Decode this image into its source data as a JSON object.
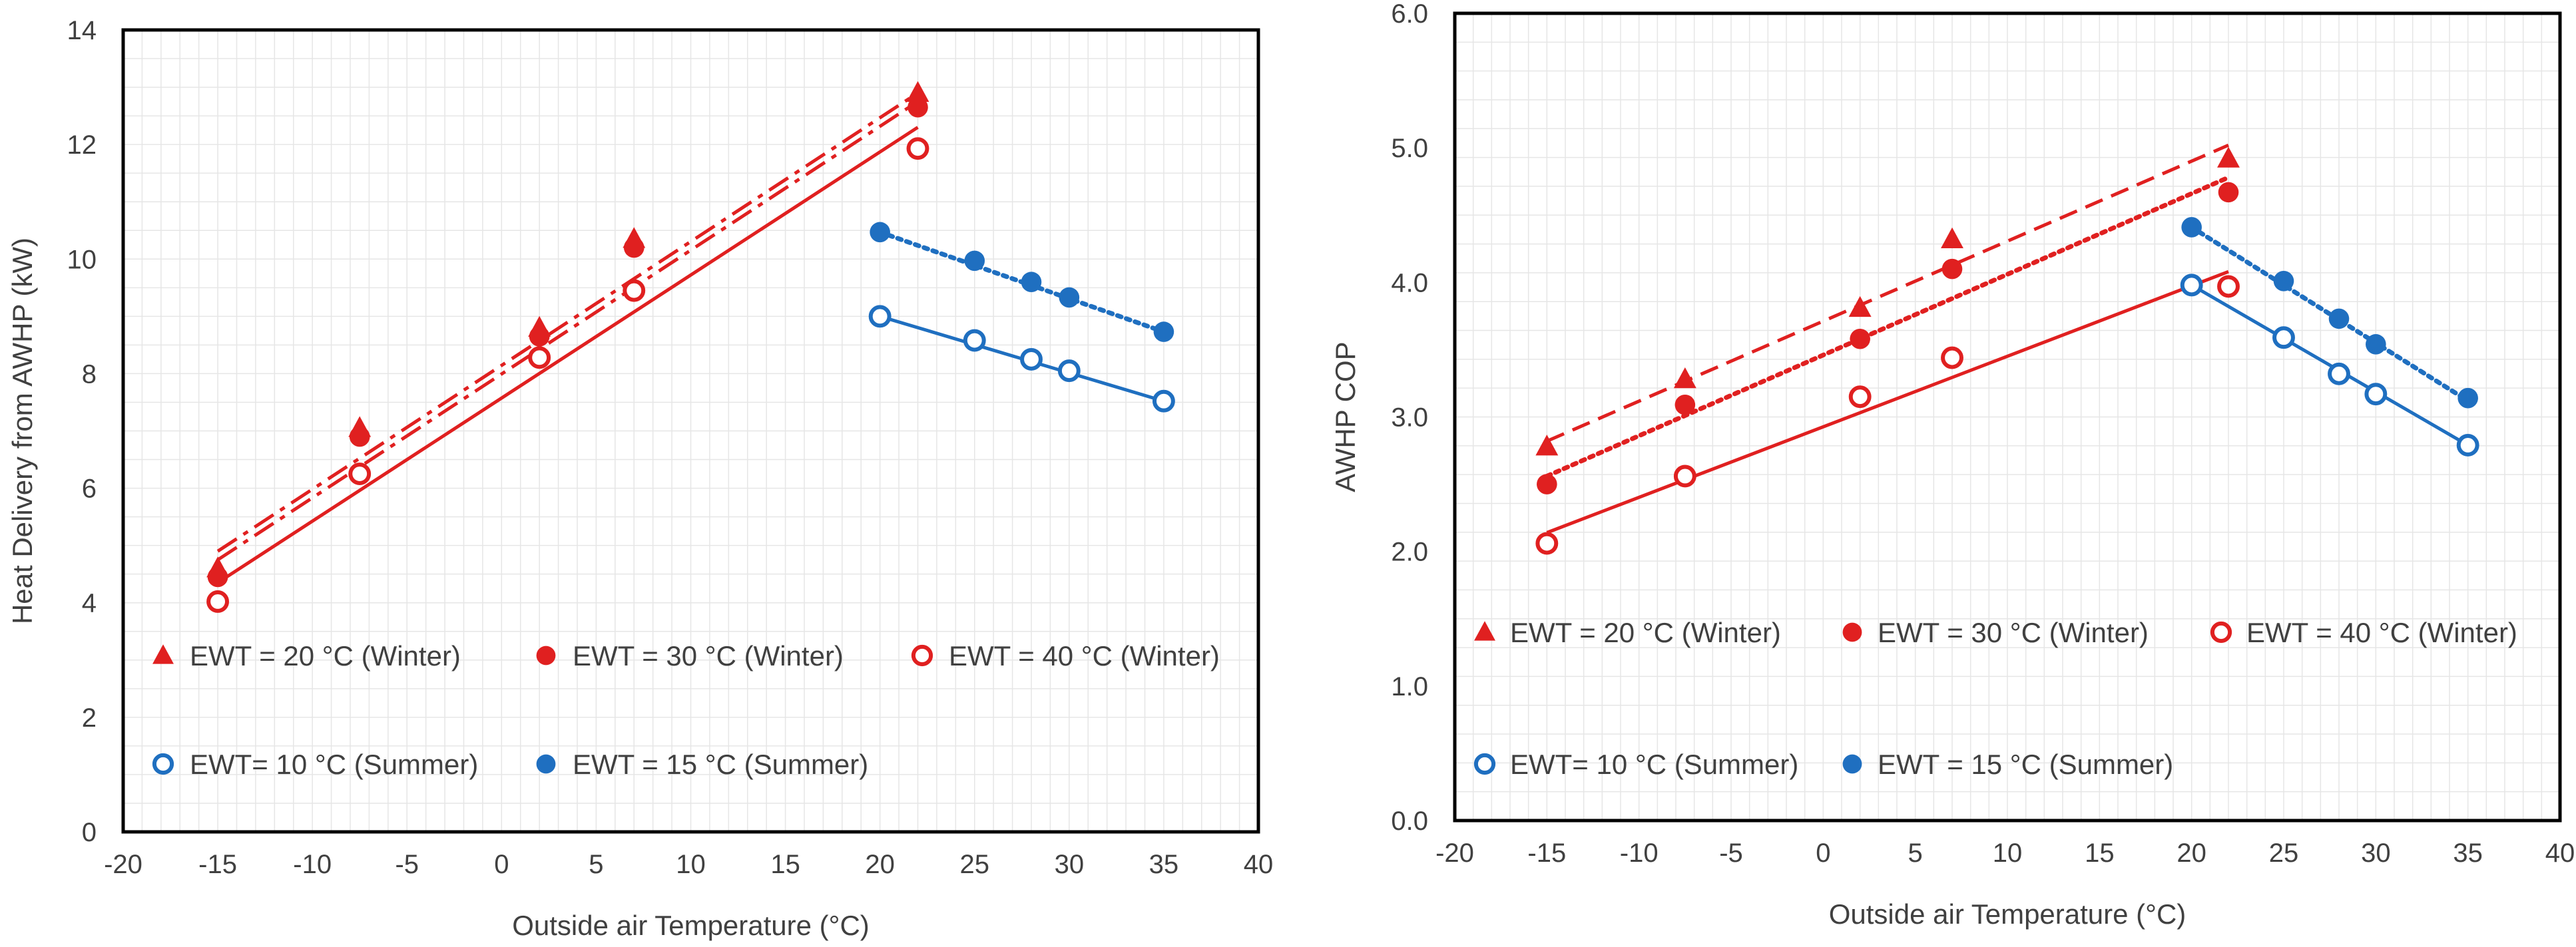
{
  "chart_data": [
    {
      "type": "scatter",
      "xlabel": "Outside air Temperature (°C)",
      "ylabel": "Heat Delivery from AWHP (kW)",
      "xlim": [
        -20,
        40
      ],
      "ylim": [
        0,
        14
      ],
      "xticks": [
        -20,
        -15,
        -10,
        -5,
        0,
        5,
        10,
        15,
        20,
        25,
        30,
        35,
        40
      ],
      "yticks": [
        0,
        2,
        4,
        6,
        8,
        10,
        12,
        14
      ],
      "ytick_decimals": 0,
      "grid": true,
      "series": [
        {
          "name": "EWT = 20 °C (Winter)",
          "marker": "triangle",
          "color": "#e02020",
          "x": [
            -15,
            -7.5,
            2,
            7,
            22
          ],
          "y": [
            4.6,
            7.05,
            8.8,
            10.35,
            12.9
          ]
        },
        {
          "name": "EWT = 30 °C (Winter)",
          "marker": "circle-filled",
          "color": "#e02020",
          "x": [
            -15,
            -7.5,
            2,
            7,
            22
          ],
          "y": [
            4.45,
            6.9,
            8.65,
            10.2,
            12.65
          ]
        },
        {
          "name": "EWT = 40 °C (Winter)",
          "marker": "circle-open",
          "color": "#e02020",
          "x": [
            -15,
            -7.5,
            2,
            7,
            22
          ],
          "y": [
            4.02,
            6.25,
            8.28,
            9.45,
            11.93
          ]
        },
        {
          "name": "EWT= 10 °C (Summer)",
          "marker": "circle-open",
          "color": "#1f6fc0",
          "x": [
            20,
            25,
            28,
            30,
            35
          ],
          "y": [
            9.0,
            8.58,
            8.25,
            8.05,
            7.52
          ]
        },
        {
          "name": "EWT = 15 °C (Summer)",
          "marker": "circle-filled",
          "color": "#1f6fc0",
          "x": [
            20,
            25,
            28,
            30,
            35
          ],
          "y": [
            10.47,
            9.97,
            9.6,
            9.33,
            8.73
          ]
        }
      ],
      "trendlines": [
        {
          "of": "EWT = 20 °C (Winter)",
          "style": "dashdot",
          "color": "#e02020",
          "x": [
            -15,
            22
          ],
          "y": [
            4.9,
            12.9
          ]
        },
        {
          "of": "EWT = 30 °C (Winter)",
          "style": "dashdot",
          "color": "#e02020",
          "x": [
            -15,
            22
          ],
          "y": [
            4.75,
            12.75
          ]
        },
        {
          "of": "EWT = 40 °C (Winter)",
          "style": "solid",
          "color": "#e02020",
          "x": [
            -15,
            22
          ],
          "y": [
            4.35,
            12.3
          ]
        },
        {
          "of": "EWT= 10 °C (Summer)",
          "style": "solid",
          "color": "#1f6fc0",
          "x": [
            20,
            35
          ],
          "y": [
            9.0,
            7.52
          ]
        },
        {
          "of": "EWT = 15 °C (Summer)",
          "style": "dotted",
          "color": "#1f6fc0",
          "x": [
            20,
            35
          ],
          "y": [
            10.47,
            8.73
          ]
        }
      ],
      "legend": [
        [
          "EWT = 20 °C (Winter)",
          "EWT = 30 °C (Winter)",
          "EWT = 40 °C (Winter)"
        ],
        [
          "EWT= 10 °C (Summer)",
          "EWT = 15 °C (Summer)"
        ]
      ]
    },
    {
      "type": "scatter",
      "xlabel": "Outside air Temperature (°C)",
      "ylabel": "AWHP COP",
      "xlim": [
        -20,
        40
      ],
      "ylim": [
        0,
        6
      ],
      "xticks": [
        -20,
        -15,
        -10,
        -5,
        0,
        5,
        10,
        15,
        20,
        25,
        30,
        35,
        40
      ],
      "yticks": [
        0,
        1,
        2,
        3,
        4,
        5,
        6
      ],
      "ytick_decimals": 1,
      "grid": true,
      "series": [
        {
          "name": "EWT = 20 °C (Winter)",
          "marker": "triangle",
          "color": "#e02020",
          "x": [
            -15,
            -7.5,
            2,
            7,
            22
          ],
          "y": [
            2.78,
            3.28,
            3.81,
            4.32,
            4.92
          ]
        },
        {
          "name": "EWT = 30 °C (Winter)",
          "marker": "circle-filled",
          "color": "#e02020",
          "x": [
            -15,
            -7.5,
            2,
            7,
            22
          ],
          "y": [
            2.5,
            3.09,
            3.58,
            4.1,
            4.67
          ]
        },
        {
          "name": "EWT = 40 °C (Winter)",
          "marker": "circle-open",
          "color": "#e02020",
          "x": [
            -15,
            -7.5,
            2,
            7,
            22
          ],
          "y": [
            2.06,
            2.56,
            3.15,
            3.44,
            3.97
          ]
        },
        {
          "name": "EWT= 10 °C (Summer)",
          "marker": "circle-open",
          "color": "#1f6fc0",
          "x": [
            20,
            25,
            28,
            30,
            35
          ],
          "y": [
            3.98,
            3.59,
            3.32,
            3.17,
            2.79
          ]
        },
        {
          "name": "EWT = 15 °C (Summer)",
          "marker": "circle-filled",
          "color": "#1f6fc0",
          "x": [
            20,
            25,
            28,
            30,
            35
          ],
          "y": [
            4.41,
            4.01,
            3.73,
            3.54,
            3.14
          ]
        }
      ],
      "trendlines": [
        {
          "of": "EWT = 20 °C (Winter)",
          "style": "dashed",
          "color": "#e02020",
          "x": [
            -15,
            22
          ],
          "y": [
            2.82,
            5.02
          ]
        },
        {
          "of": "EWT = 30 °C (Winter)",
          "style": "dotted",
          "color": "#e02020",
          "x": [
            -15,
            22
          ],
          "y": [
            2.56,
            4.78
          ]
        },
        {
          "of": "EWT = 40 °C (Winter)",
          "style": "solid",
          "color": "#e02020",
          "x": [
            -15,
            22
          ],
          "y": [
            2.14,
            4.08
          ]
        },
        {
          "of": "EWT= 10 °C (Summer)",
          "style": "solid",
          "color": "#1f6fc0",
          "x": [
            20,
            35
          ],
          "y": [
            3.98,
            2.79
          ]
        },
        {
          "of": "EWT = 15 °C (Summer)",
          "style": "dotted",
          "color": "#1f6fc0",
          "x": [
            20,
            35
          ],
          "y": [
            4.41,
            3.12
          ]
        }
      ],
      "legend": [
        [
          "EWT = 20 °C (Winter)",
          "EWT = 30 °C (Winter)",
          "EWT = 40 °C (Winter)"
        ],
        [
          "EWT= 10 °C (Summer)",
          "EWT = 15 °C (Summer)"
        ]
      ]
    }
  ]
}
